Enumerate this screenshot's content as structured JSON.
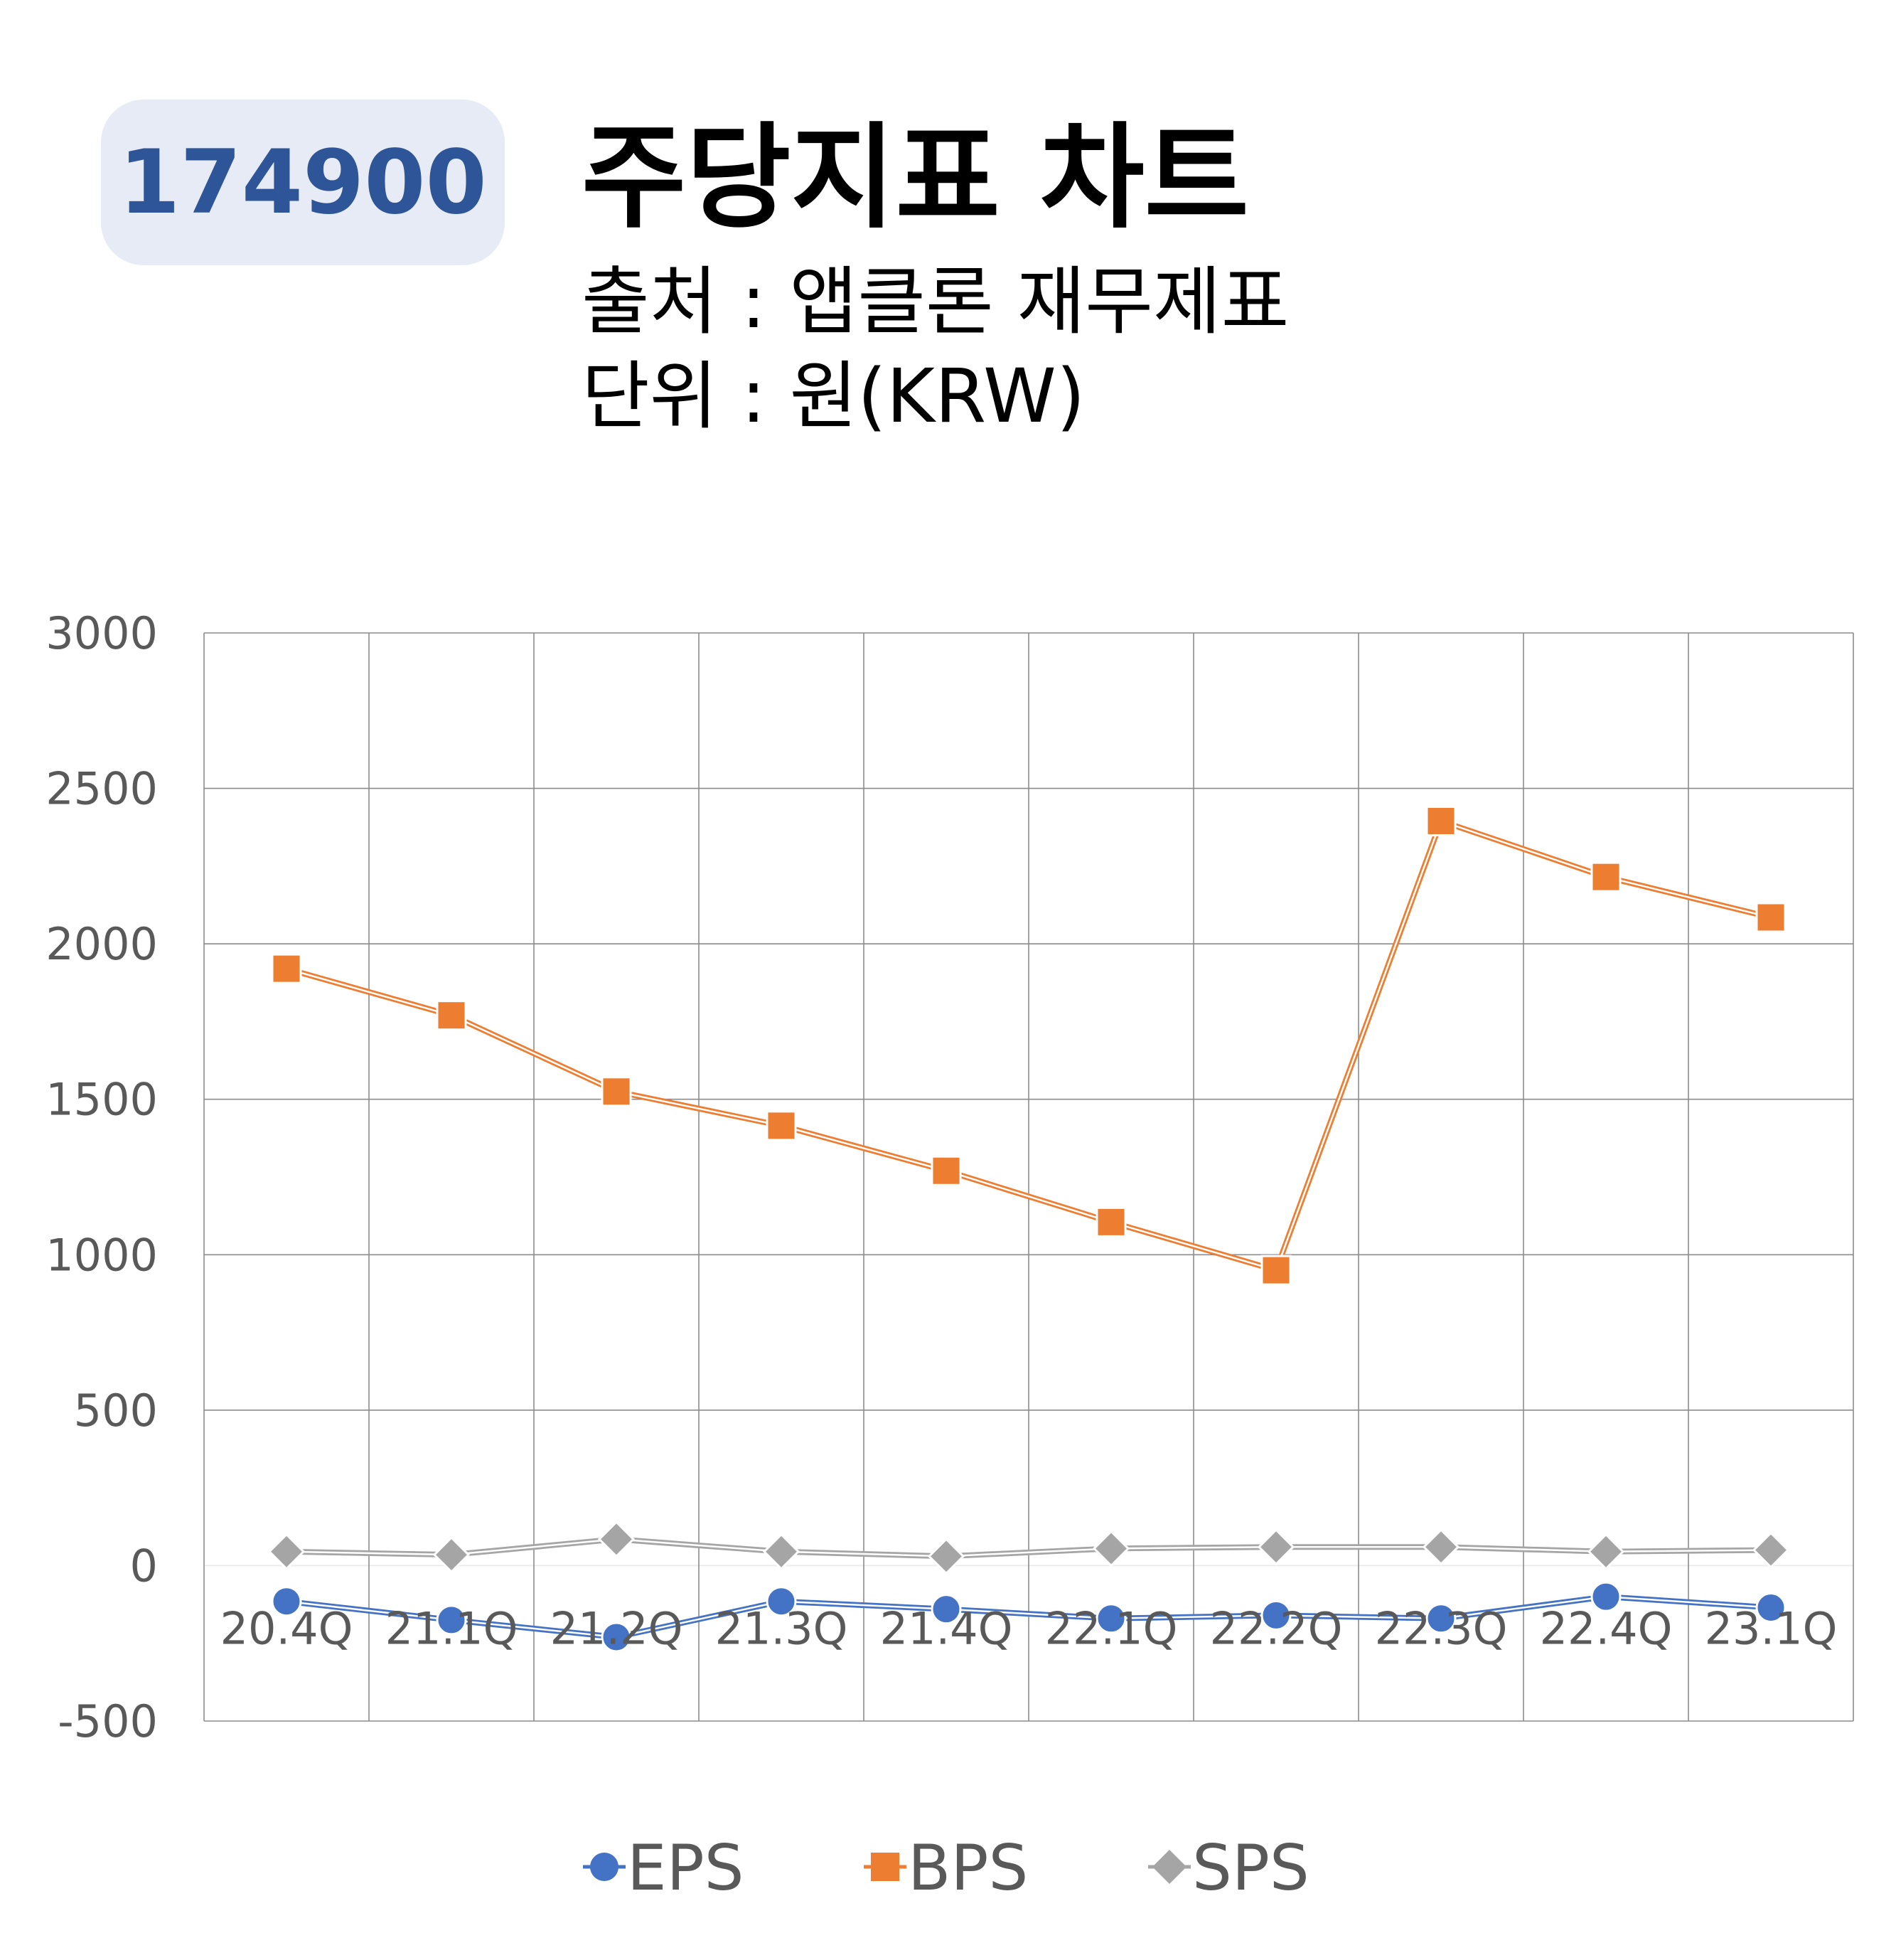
{
  "header": {
    "code": "174900",
    "title": "주당지표 차트",
    "source": "출처 : 앱클론 재무제표",
    "unit": "단위 : 원(KRW)"
  },
  "chart_data": {
    "type": "line",
    "categories": [
      "20.4Q",
      "21.1Q",
      "21.2Q",
      "21.3Q",
      "21.4Q",
      "22.1Q",
      "22.2Q",
      "22.3Q",
      "22.4Q",
      "23.1Q"
    ],
    "ylim": [
      -500,
      3000
    ],
    "yticks": [
      -500,
      0,
      500,
      1000,
      1500,
      2000,
      2500,
      3000
    ],
    "grid": true,
    "legend_position": "bottom",
    "series": [
      {
        "name": "EPS",
        "color": "#4472c4",
        "marker": "circle",
        "values": [
          -115,
          -175,
          -230,
          -115,
          -140,
          -170,
          -160,
          -170,
          -100,
          -135
        ]
      },
      {
        "name": "BPS",
        "color": "#ed7d31",
        "marker": "square",
        "values": [
          1920,
          1770,
          1525,
          1415,
          1270,
          1105,
          950,
          2395,
          2215,
          2085
        ]
      },
      {
        "name": "SPS",
        "color": "#a5a5a5",
        "marker": "diamond",
        "values": [
          45,
          35,
          85,
          45,
          30,
          55,
          60,
          60,
          45,
          50
        ]
      }
    ]
  }
}
